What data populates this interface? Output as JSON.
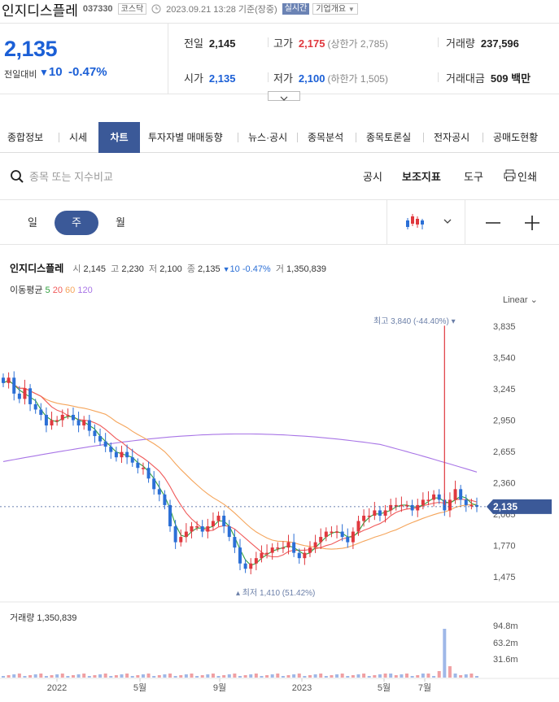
{
  "header": {
    "name": "인지디스플레",
    "code": "037330",
    "market": "코스닥",
    "datetime": "2023.09.21 13:28",
    "basis": "기준(장중)",
    "live": "실시간",
    "company_info": "기업개요"
  },
  "quote": {
    "price": "2,135",
    "change_label": "전일대비",
    "change": "10",
    "change_pct": "-0.47%",
    "prev_close_label": "전일",
    "prev_close": "2,145",
    "high_label": "고가",
    "high": "2,175",
    "upper_limit": "(상한가 2,785)",
    "volume_label": "거래량",
    "volume": "237,596",
    "open_label": "시가",
    "open": "2,135",
    "low_label": "저가",
    "low": "2,100",
    "lower_limit": "(하한가 1,505)",
    "amount_label": "거래대금",
    "amount": "509 백만"
  },
  "tabs": [
    "종합정보",
    "시세",
    "차트",
    "투자자별 매매동향",
    "뉴스·공시",
    "종목분석",
    "종목토론실",
    "전자공시",
    "공매도현황"
  ],
  "active_tab": "차트",
  "toolbar": {
    "search_placeholder": "종목 또는 지수비교",
    "disclosure": "공시",
    "indicator": "보조지표",
    "tools": "도구",
    "print": "인쇄"
  },
  "periods": [
    "일",
    "주",
    "월"
  ],
  "active_period": "주",
  "legend": {
    "name": "인지디스플레",
    "open_label": "시",
    "open": "2,145",
    "high_label": "고",
    "high": "2,230",
    "low_label": "저",
    "low": "2,100",
    "close_label": "종",
    "close": "2,135",
    "change": "10",
    "change_pct": "-0.47%",
    "vol_label": "거",
    "vol": "1,350,839",
    "ma_label": "이동평균",
    "ma": [
      "5",
      "20",
      "60",
      "120"
    ]
  },
  "scale_label": "Linear",
  "volume_label": "거래량 1,350,839",
  "colors": {
    "up": "#e0383e",
    "down": "#2b6fd6",
    "accent": "#3b5998",
    "ma5": "#31a13f",
    "ma20": "#f05a5a",
    "ma60": "#f5a55b",
    "ma120": "#a875e6"
  },
  "chart_data": {
    "type": "candlestick",
    "x_labels": [
      "2022",
      "5월",
      "9월",
      "2023",
      "5월",
      "7월"
    ],
    "y_ticks": [
      3835,
      3540,
      3245,
      2950,
      2655,
      2360,
      2065,
      1770,
      1475
    ],
    "y_tick_labels": [
      "3,835",
      "3,540",
      "3,245",
      "2,950",
      "2,655",
      "2,360",
      "2,065",
      "1,770",
      "1,475"
    ],
    "current_price": 2135,
    "current_price_label": "2,135",
    "max_label": "최고 3,840 (-44.40%)",
    "min_label": "최저 1,410 (51.42%)",
    "volume_ticks": [
      "94.8m",
      "63.2m",
      "31.6m"
    ],
    "weekly_close": [
      3300,
      3350,
      3200,
      3150,
      3250,
      3100,
      3050,
      3000,
      2900,
      2950,
      2950,
      3000,
      3000,
      2950,
      2900,
      2950,
      2850,
      2800,
      2750,
      2700,
      2650,
      2600,
      2650,
      2600,
      2550,
      2500,
      2500,
      2400,
      2300,
      2250,
      2150,
      1950,
      1800,
      1850,
      1900,
      1950,
      1950,
      1900,
      1950,
      2000,
      2050,
      1950,
      1850,
      1750,
      1600,
      1550,
      1600,
      1650,
      1700,
      1700,
      1750,
      1750,
      1750,
      1800,
      1700,
      1650,
      1700,
      1750,
      1800,
      1850,
      1900,
      1900,
      1900,
      1850,
      1800,
      1900,
      2000,
      2050,
      2050,
      2100,
      2050,
      2100,
      2150,
      2150,
      2150,
      2150,
      2100,
      2150,
      2200,
      2200,
      2250,
      2200,
      2100,
      2200,
      2300,
      2200,
      2150,
      2150,
      2135
    ],
    "ma_series": [
      "5",
      "20",
      "60",
      "120"
    ]
  }
}
